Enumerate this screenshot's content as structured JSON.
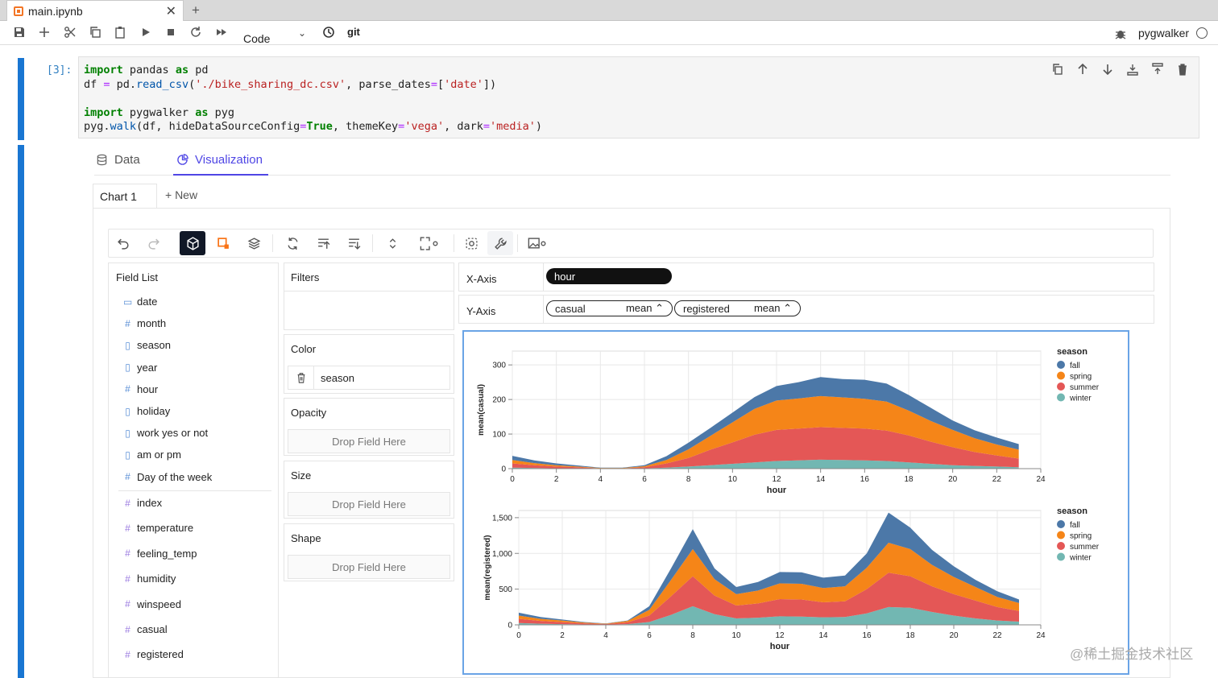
{
  "tab": {
    "title": "main.ipynb",
    "close": "✕",
    "new": "+"
  },
  "toolbar": {
    "cell_type": "Code",
    "git": "git",
    "kernel": "pygwalker"
  },
  "cell": {
    "prompt": "[3]:"
  },
  "pyg": {
    "tabs": [
      {
        "label": "Data"
      },
      {
        "label": "Visualization"
      }
    ],
    "chart_tab": "Chart 1",
    "new_chart": "+ New",
    "field_list": {
      "title": "Field List",
      "dimensions": [
        "date",
        "month",
        "season",
        "year",
        "hour",
        "holiday",
        "work yes or not",
        "am or pm",
        "Day of the week"
      ],
      "measures": [
        "index",
        "temperature",
        "feeling_temp",
        "humidity",
        "winspeed",
        "casual",
        "registered"
      ]
    },
    "filters_label": "Filters",
    "color_label": "Color",
    "color_field": "season",
    "opacity_label": "Opacity",
    "size_label": "Size",
    "shape_label": "Shape",
    "drop_text": "Drop Field Here",
    "x_axis_label": "X-Axis",
    "y_axis_label": "Y-Axis",
    "x_field": "hour",
    "y_fields": [
      {
        "name": "casual",
        "agg": "mean ⌃"
      },
      {
        "name": "registered",
        "agg": "mean ⌃"
      }
    ]
  },
  "chart_data": [
    {
      "type": "area",
      "stacked": true,
      "xlabel": "hour",
      "ylabel": "mean(casual)",
      "x": [
        0,
        1,
        2,
        3,
        4,
        5,
        6,
        7,
        8,
        9,
        10,
        11,
        12,
        13,
        14,
        15,
        16,
        17,
        18,
        19,
        20,
        21,
        22,
        23
      ],
      "xticks": [
        0,
        2,
        4,
        6,
        8,
        10,
        12,
        14,
        16,
        18,
        20,
        22,
        24
      ],
      "xlim": [
        0,
        24
      ],
      "yticks": [
        0,
        100,
        200,
        300
      ],
      "ylim": [
        0,
        340
      ],
      "legend_title": "season",
      "series": [
        {
          "name": "winter",
          "color": "#72b7b2",
          "values": [
            3,
            2,
            1,
            1,
            0,
            0,
            1,
            3,
            6,
            10,
            14,
            18,
            22,
            24,
            26,
            25,
            24,
            22,
            18,
            14,
            10,
            8,
            6,
            4
          ]
        },
        {
          "name": "summer",
          "color": "#e45756",
          "values": [
            12,
            8,
            5,
            3,
            1,
            1,
            3,
            12,
            25,
            45,
            62,
            80,
            90,
            92,
            94,
            93,
            92,
            88,
            78,
            64,
            52,
            40,
            32,
            25
          ]
        },
        {
          "name": "spring",
          "color": "#f58518",
          "values": [
            10,
            6,
            4,
            2,
            1,
            1,
            3,
            10,
            25,
            40,
            58,
            75,
            85,
            87,
            90,
            88,
            86,
            84,
            72,
            60,
            50,
            40,
            32,
            26
          ]
        },
        {
          "name": "fall",
          "color": "#4c78a8",
          "values": [
            12,
            8,
            5,
            3,
            1,
            1,
            3,
            11,
            19,
            23,
            28,
            34,
            42,
            47,
            55,
            53,
            55,
            52,
            45,
            38,
            27,
            23,
            20,
            16
          ]
        }
      ]
    },
    {
      "type": "area",
      "stacked": true,
      "xlabel": "hour",
      "ylabel": "mean(registered)",
      "x": [
        0,
        1,
        2,
        3,
        4,
        5,
        6,
        7,
        8,
        9,
        10,
        11,
        12,
        13,
        14,
        15,
        16,
        17,
        18,
        19,
        20,
        21,
        22,
        23
      ],
      "xticks": [
        0,
        2,
        4,
        6,
        8,
        10,
        12,
        14,
        16,
        18,
        20,
        22,
        24
      ],
      "xlim": [
        0,
        24
      ],
      "yticks": [
        0,
        500,
        1000,
        1500
      ],
      "yticklabels": [
        "0",
        "500",
        "1,000",
        "1,500"
      ],
      "ylim": [
        0,
        1600
      ],
      "legend_title": "season",
      "series": [
        {
          "name": "winter",
          "color": "#72b7b2",
          "values": [
            25,
            15,
            10,
            6,
            3,
            10,
            40,
            140,
            260,
            150,
            90,
            100,
            120,
            115,
            105,
            110,
            160,
            250,
            240,
            180,
            130,
            90,
            60,
            45
          ]
        },
        {
          "name": "summer",
          "color": "#e45756",
          "values": [
            60,
            40,
            28,
            15,
            8,
            25,
            90,
            260,
            420,
            260,
            180,
            200,
            240,
            240,
            210,
            220,
            340,
            480,
            440,
            360,
            300,
            250,
            190,
            150
          ]
        },
        {
          "name": "spring",
          "color": "#f58518",
          "values": [
            45,
            30,
            22,
            12,
            6,
            20,
            80,
            230,
            380,
            230,
            160,
            180,
            220,
            220,
            200,
            210,
            300,
            420,
            380,
            300,
            240,
            190,
            140,
            110
          ]
        },
        {
          "name": "fall",
          "color": "#4c78a8",
          "values": [
            40,
            25,
            15,
            7,
            3,
            5,
            50,
            160,
            280,
            150,
            100,
            120,
            160,
            160,
            145,
            150,
            200,
            420,
            300,
            210,
            150,
            100,
            80,
            50
          ]
        }
      ]
    }
  ],
  "watermark": "@稀土掘金技术社区"
}
